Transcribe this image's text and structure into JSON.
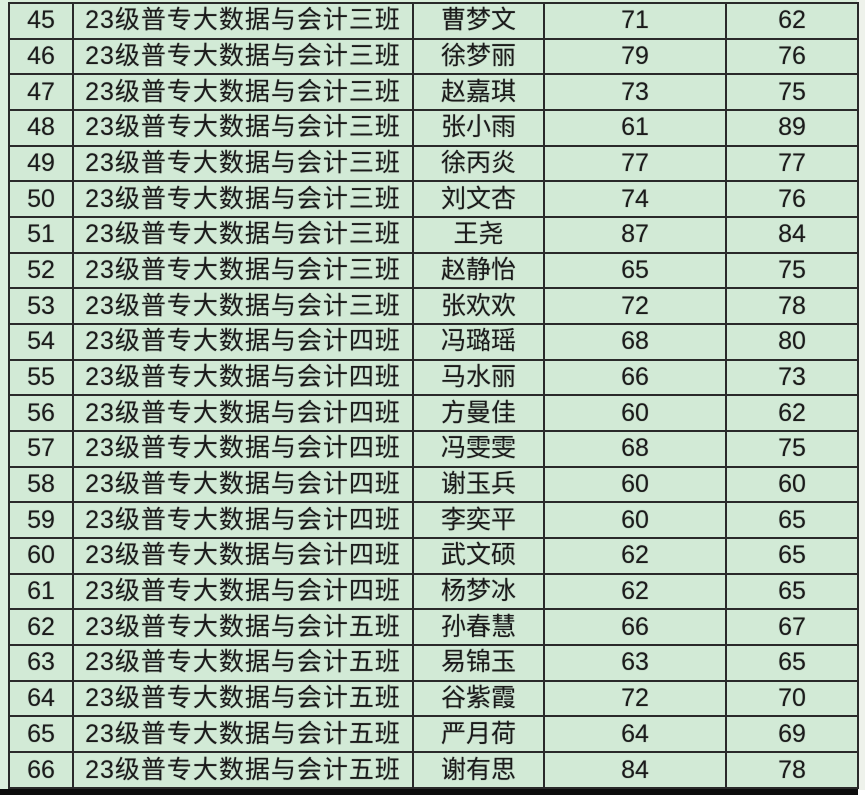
{
  "colors": {
    "cell_background": "#d2ead6",
    "grid_border": "#2a2a2a",
    "text": "#1b1b1b",
    "bottom_bar": "#0d0d0d",
    "outer_left_strip": "#dcefde",
    "outer_right_strip": "#eef2eb"
  },
  "table": {
    "visible_row_range": "45-66",
    "rows": [
      {
        "row_number": "45",
        "class_name": "23级普专大数据与会计三班",
        "student_name": "曹梦文",
        "score_1": "71",
        "score_2": "62"
      },
      {
        "row_number": "46",
        "class_name": "23级普专大数据与会计三班",
        "student_name": "徐梦丽",
        "score_1": "79",
        "score_2": "76"
      },
      {
        "row_number": "47",
        "class_name": "23级普专大数据与会计三班",
        "student_name": "赵嘉琪",
        "score_1": "73",
        "score_2": "75"
      },
      {
        "row_number": "48",
        "class_name": "23级普专大数据与会计三班",
        "student_name": "张小雨",
        "score_1": "61",
        "score_2": "89"
      },
      {
        "row_number": "49",
        "class_name": "23级普专大数据与会计三班",
        "student_name": "徐丙炎",
        "score_1": "77",
        "score_2": "77"
      },
      {
        "row_number": "50",
        "class_name": "23级普专大数据与会计三班",
        "student_name": "刘文杏",
        "score_1": "74",
        "score_2": "76"
      },
      {
        "row_number": "51",
        "class_name": "23级普专大数据与会计三班",
        "student_name": "王尧",
        "score_1": "87",
        "score_2": "84"
      },
      {
        "row_number": "52",
        "class_name": "23级普专大数据与会计三班",
        "student_name": "赵静怡",
        "score_1": "65",
        "score_2": "75"
      },
      {
        "row_number": "53",
        "class_name": "23级普专大数据与会计三班",
        "student_name": "张欢欢",
        "score_1": "72",
        "score_2": "78"
      },
      {
        "row_number": "54",
        "class_name": "23级普专大数据与会计四班",
        "student_name": "冯璐瑶",
        "score_1": "68",
        "score_2": "80"
      },
      {
        "row_number": "55",
        "class_name": "23级普专大数据与会计四班",
        "student_name": "马水丽",
        "score_1": "66",
        "score_2": "73"
      },
      {
        "row_number": "56",
        "class_name": "23级普专大数据与会计四班",
        "student_name": "方曼佳",
        "score_1": "60",
        "score_2": "62"
      },
      {
        "row_number": "57",
        "class_name": "23级普专大数据与会计四班",
        "student_name": "冯雯雯",
        "score_1": "68",
        "score_2": "75"
      },
      {
        "row_number": "58",
        "class_name": "23级普专大数据与会计四班",
        "student_name": "谢玉兵",
        "score_1": "60",
        "score_2": "60"
      },
      {
        "row_number": "59",
        "class_name": "23级普专大数据与会计四班",
        "student_name": "李奕平",
        "score_1": "60",
        "score_2": "65"
      },
      {
        "row_number": "60",
        "class_name": "23级普专大数据与会计四班",
        "student_name": "武文硕",
        "score_1": "62",
        "score_2": "65"
      },
      {
        "row_number": "61",
        "class_name": "23级普专大数据与会计四班",
        "student_name": "杨梦冰",
        "score_1": "62",
        "score_2": "65"
      },
      {
        "row_number": "62",
        "class_name": "23级普专大数据与会计五班",
        "student_name": "孙春慧",
        "score_1": "66",
        "score_2": "67"
      },
      {
        "row_number": "63",
        "class_name": "23级普专大数据与会计五班",
        "student_name": "易锦玉",
        "score_1": "63",
        "score_2": "65"
      },
      {
        "row_number": "64",
        "class_name": "23级普专大数据与会计五班",
        "student_name": "谷紫霞",
        "score_1": "72",
        "score_2": "70"
      },
      {
        "row_number": "65",
        "class_name": "23级普专大数据与会计五班",
        "student_name": "严月荷",
        "score_1": "64",
        "score_2": "69"
      },
      {
        "row_number": "66",
        "class_name": "23级普专大数据与会计五班",
        "student_name": "谢有思",
        "score_1": "84",
        "score_2": "78"
      }
    ]
  }
}
